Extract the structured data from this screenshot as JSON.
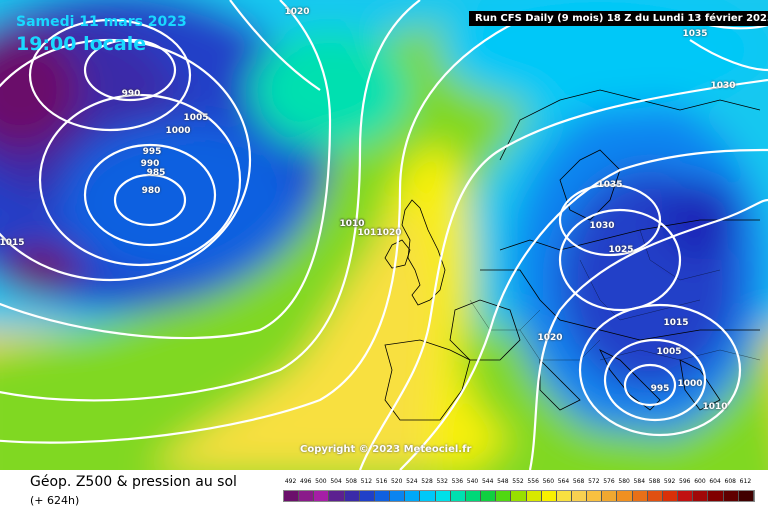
{
  "header": {
    "date": "Samedi 11 mars 2023",
    "time": "19:00 locale",
    "run": "Run CFS Daily (9 mois) 18 Z du Lundi 13 février 2023"
  },
  "copyright": "Copyright © 2023 Meteociel.fr",
  "footer": {
    "title": "Géop. Z500 & pression au sol",
    "subtitle": "(+ 624h)"
  },
  "isobar_labels": [
    "1020",
    "1035",
    "1030",
    "990",
    "1005",
    "1000",
    "995",
    "990",
    "985",
    "980",
    "1015",
    "1010",
    "1011",
    "1020",
    "1035",
    "1030",
    "1025",
    "1020",
    "1015",
    "1005",
    "995",
    "1000",
    "1010",
    "1010"
  ],
  "legend": {
    "ticks": [
      "492",
      "496",
      "500",
      "504",
      "508",
      "512",
      "516",
      "520",
      "524",
      "528",
      "532",
      "536",
      "540",
      "544",
      "548",
      "552",
      "556",
      "560",
      "564",
      "568",
      "572",
      "576",
      "580",
      "584",
      "588",
      "592",
      "596",
      "600",
      "604",
      "608",
      "612"
    ],
    "colors": [
      "#6b0f6b",
      "#8a1a8a",
      "#a61ea6",
      "#5c2090",
      "#3a2aa8",
      "#2040c8",
      "#1060e0",
      "#0a84f0",
      "#00a8f8",
      "#00c8f8",
      "#00e0e8",
      "#00e0b0",
      "#00d878",
      "#10d040",
      "#50d810",
      "#98e000",
      "#d8e800",
      "#f8f000",
      "#f8e040",
      "#f8d050",
      "#f8c040",
      "#f0a830",
      "#f09020",
      "#e87018",
      "#e05010",
      "#d83008",
      "#c01010",
      "#a00808",
      "#800000",
      "#600000",
      "#400000"
    ]
  }
}
